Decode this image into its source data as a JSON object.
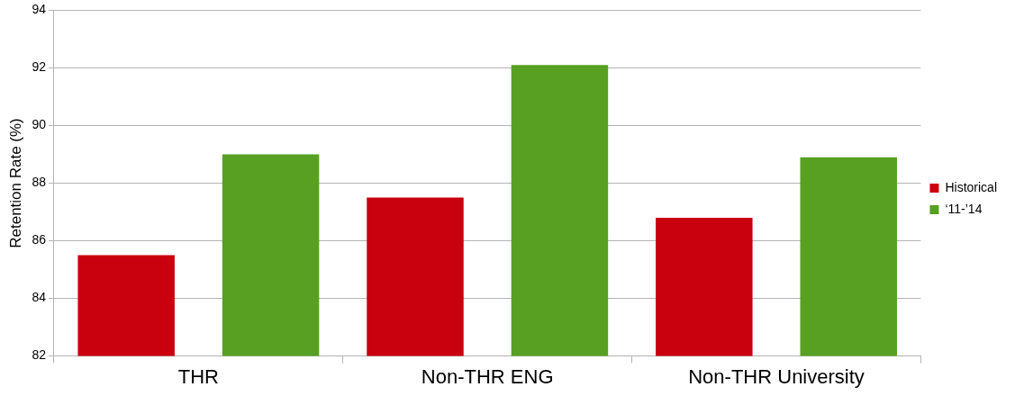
{
  "chart_data": {
    "type": "bar",
    "ylabel": "Retention Rate (%)",
    "categories": [
      "THR",
      "Non-THR ENG",
      "Non-THR University"
    ],
    "series": [
      {
        "name": "Historical",
        "color": "#c9000e",
        "values": [
          85.5,
          87.5,
          86.8
        ]
      },
      {
        "name": "‘11-’14",
        "color": "#57a021",
        "values": [
          89.0,
          92.1,
          88.9
        ]
      }
    ],
    "ylim": [
      82,
      94
    ],
    "yticks": [
      82,
      84,
      86,
      88,
      90,
      92,
      94
    ],
    "grid": "y",
    "legend": "right"
  }
}
